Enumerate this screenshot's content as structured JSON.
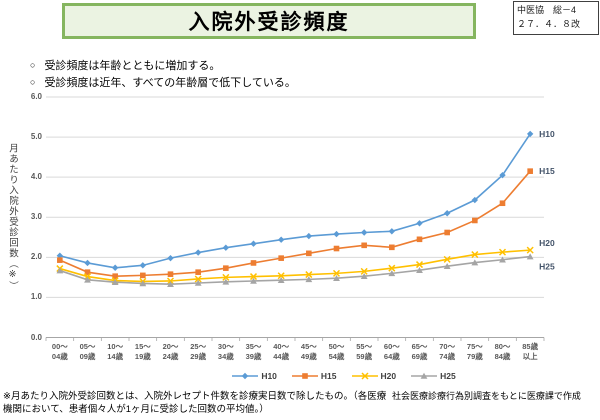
{
  "header": {
    "title": "入院外受診頻度",
    "notice_line1": "中医協　総－4",
    "notice_line2": "２７．４．８改"
  },
  "bullets": [
    {
      "marker": "○",
      "text": "受診頻度は年齢とともに増加する。"
    },
    {
      "marker": "○",
      "text": "受診頻度は近年、すべての年齢層で低下している。"
    }
  ],
  "chart_data": {
    "type": "line",
    "title": "",
    "xlabel": "",
    "ylabel": "月あたり入院外受診回数（※）",
    "ylim": [
      0.0,
      6.0
    ],
    "y_ticks": [
      "6.0",
      "5.0",
      "4.0",
      "3.0",
      "2.0",
      "1.0",
      "0.0"
    ],
    "grid": true,
    "legend_position": "bottom",
    "categories": [
      "00～04歳",
      "05～09歳",
      "10～14歳",
      "15～19歳",
      "20～24歳",
      "25～29歳",
      "30～34歳",
      "35～39歳",
      "40～44歳",
      "45～49歳",
      "50～54歳",
      "55～59歳",
      "60～64歳",
      "65～69歳",
      "70～74歳",
      "75～79歳",
      "80～84歳",
      "85歳以上"
    ],
    "series": [
      {
        "name": "H10",
        "color": "#5B9BD5",
        "marker": "diamond",
        "values": [
          2.04,
          1.86,
          1.74,
          1.8,
          1.98,
          2.12,
          2.24,
          2.34,
          2.44,
          2.53,
          2.58,
          2.62,
          2.65,
          2.85,
          3.1,
          3.43,
          4.05,
          5.08
        ]
      },
      {
        "name": "H15",
        "color": "#ED7D31",
        "marker": "square",
        "values": [
          1.93,
          1.63,
          1.53,
          1.55,
          1.58,
          1.63,
          1.73,
          1.86,
          1.98,
          2.1,
          2.22,
          2.3,
          2.25,
          2.45,
          2.62,
          2.92,
          3.35,
          4.15
        ]
      },
      {
        "name": "H20",
        "color": "#FFC000",
        "marker": "x",
        "values": [
          1.72,
          1.52,
          1.42,
          1.4,
          1.41,
          1.46,
          1.5,
          1.52,
          1.54,
          1.57,
          1.6,
          1.65,
          1.73,
          1.82,
          1.95,
          2.07,
          2.13,
          2.18
        ]
      },
      {
        "name": "H25",
        "color": "#A5A5A5",
        "marker": "triangle",
        "values": [
          1.67,
          1.44,
          1.38,
          1.35,
          1.33,
          1.36,
          1.39,
          1.41,
          1.43,
          1.45,
          1.48,
          1.53,
          1.6,
          1.68,
          1.78,
          1.87,
          1.94,
          2.02
        ]
      }
    ]
  },
  "footnote": {
    "text": "※月あたり入院外受診回数とは、入院外レセプト件数を診療実日数で除したもの。（各医療機関において、患者個々人が1ヶ月に受診した回数の平均値。）",
    "source": "社会医療診療行為別調査をもとに医療課で作成"
  }
}
